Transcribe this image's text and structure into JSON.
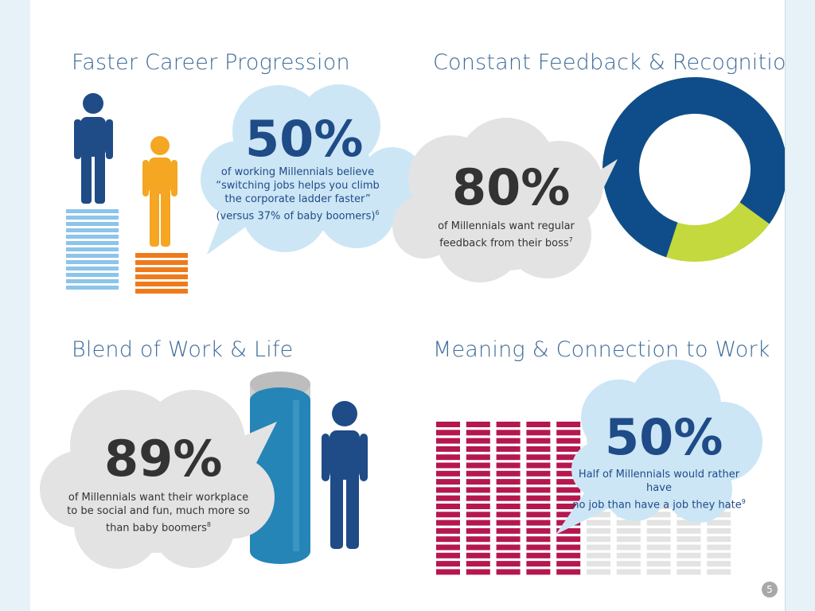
{
  "panels": {
    "career": {
      "heading": "Faster Career Progression",
      "stat": "50%",
      "caption_lines": [
        "of working Millennials believe",
        "“switching jobs helps you climb",
        "the corporate ladder faster”",
        "(versus 37% of baby boomers)"
      ],
      "footnote": "6",
      "colors": {
        "millennial": "#f5a623",
        "boomer": "#1f4b87",
        "boomer_stairs": "#8cc4ea",
        "millennial_stairs": "#ef7a1a",
        "bubble": "#cce6f6",
        "stat": "#1f4b87"
      }
    },
    "feedback": {
      "heading": "Constant Feedback & Recognition",
      "stat": "80%",
      "caption_lines": [
        "of Millennials want regular",
        "feedback from their boss"
      ],
      "footnote": "7",
      "donut_fraction": 0.8,
      "colors": {
        "main": "#0f4d8a",
        "rest": "#c3d93d",
        "bubble": "#e3e3e3",
        "stat": "#333333"
      }
    },
    "blend": {
      "heading": "Blend of Work & Life",
      "stat": "89%",
      "caption_lines": [
        "of Millennials want their workplace",
        "to be social and fun, much more so",
        "than baby boomers"
      ],
      "footnote": "8",
      "fill_fraction": 0.89,
      "colors": {
        "cylinder": "#2585b6",
        "cylinder_top": "#cfcfcf",
        "person": "#1f4b87",
        "bubble": "#e3e3e3",
        "stat": "#333333"
      }
    },
    "meaning": {
      "heading": "Meaning & Connection to Work",
      "stat": "50%",
      "caption_lines": [
        "Half of Millennials would rather have",
        "no job than have a job they hate"
      ],
      "footnote": "9",
      "fraction": 0.5,
      "colors": {
        "filled": "#b5174f",
        "empty": "#e3e3e3",
        "bubble": "#cce6f6",
        "stat": "#1f4b87"
      }
    }
  },
  "page_number": "5"
}
